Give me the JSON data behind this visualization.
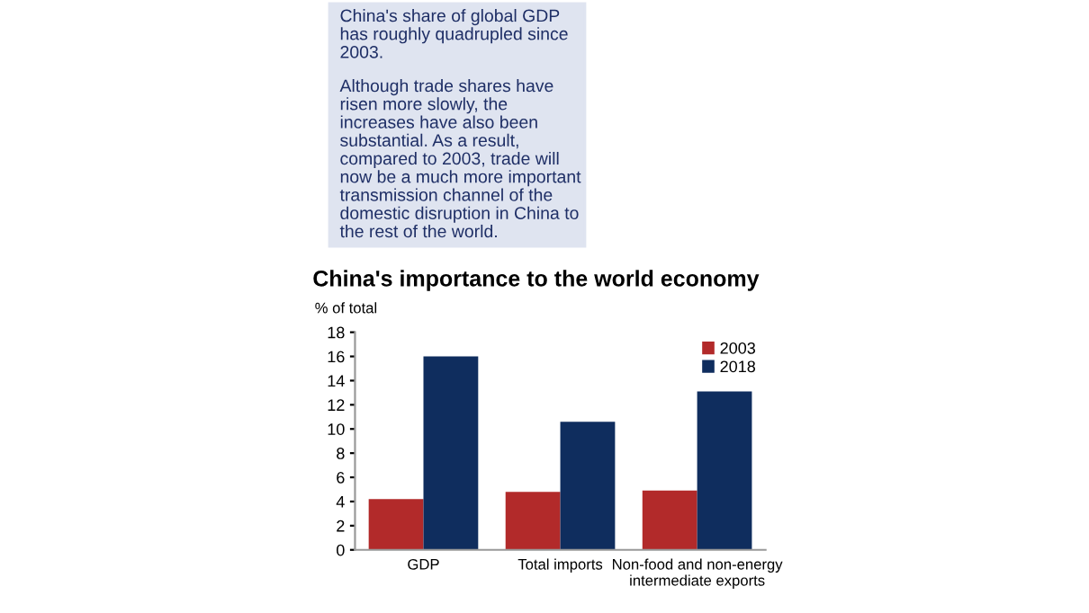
{
  "chart_data": {
    "type": "bar",
    "title": "China's importance to the world economy",
    "ylabel": "% of total",
    "annotations": [
      "China's share of global GDP\nhas roughly quadrupled since\n2003.",
      "Although trade shares have\nrisen more slowly, the\nincreases have also been\nsubstantial. As a result,\ncompared to 2003, trade will\nnow be a much more important\ntransmission channel of the\ndomestic disruption in China to\nthe rest of the world."
    ],
    "categories": [
      "GDP",
      "Total imports",
      "Non-food and non-energy\nintermediate exports"
    ],
    "series": [
      {
        "name": "2003",
        "color": "#b22a2a",
        "values": [
          4.2,
          4.8,
          4.9
        ]
      },
      {
        "name": "2018",
        "color": "#0f2d5e",
        "values": [
          16.0,
          10.6,
          13.1
        ]
      }
    ],
    "ylim": [
      0,
      18
    ],
    "yticks": [
      0,
      2,
      4,
      6,
      8,
      10,
      12,
      14,
      16,
      18
    ],
    "grid": false,
    "legend": "top right"
  }
}
